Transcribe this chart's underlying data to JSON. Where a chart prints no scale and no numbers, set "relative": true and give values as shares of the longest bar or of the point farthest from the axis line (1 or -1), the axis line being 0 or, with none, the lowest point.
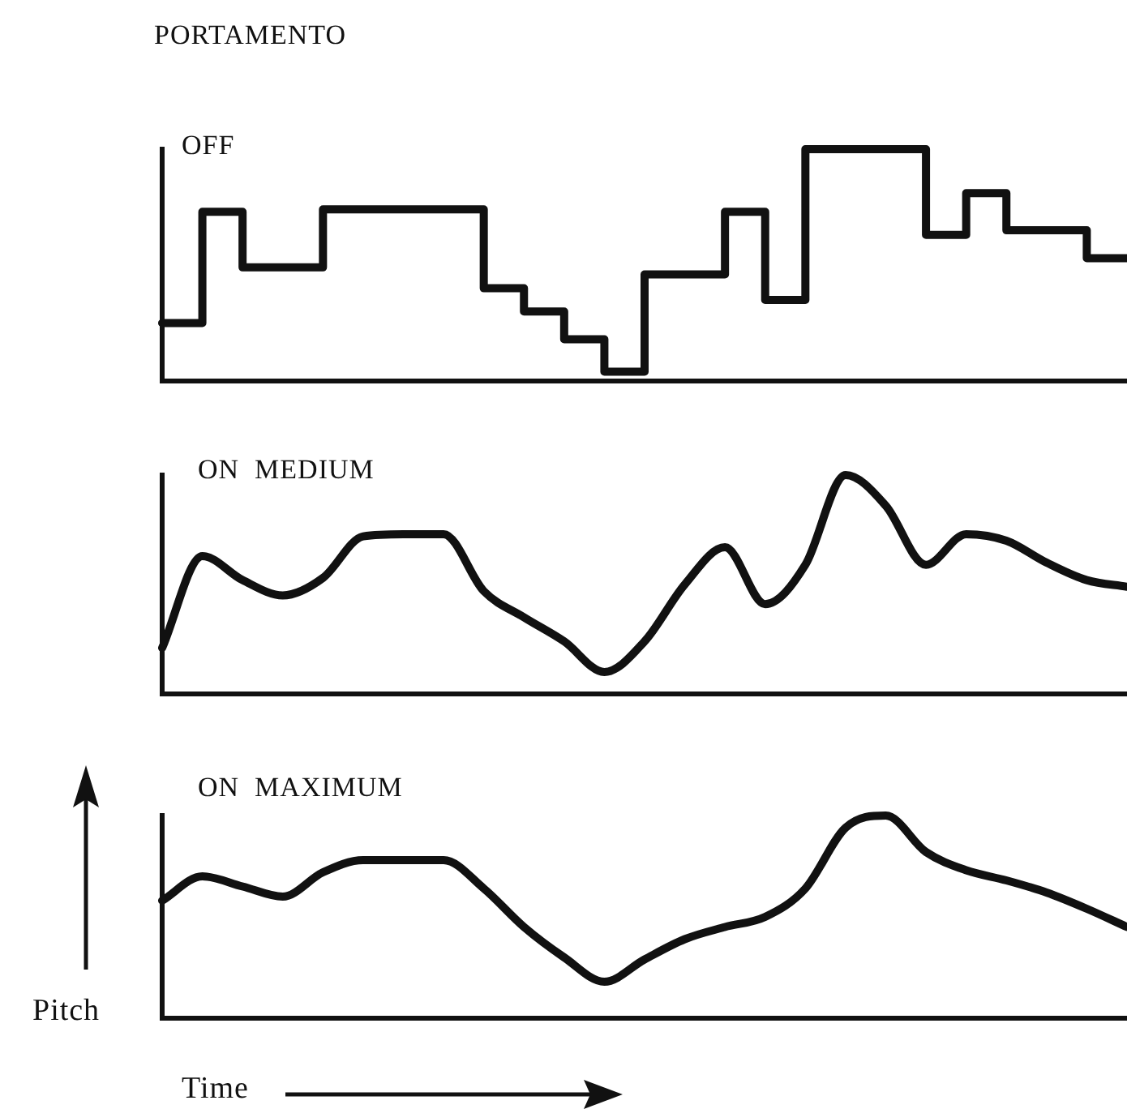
{
  "chart_data": [
    {
      "type": "step",
      "title": "PORTAMENTO",
      "subtitle": "OFF",
      "relative": true,
      "marker": "none",
      "color": "#111111",
      "categories": [
        null,
        null,
        null,
        null,
        null,
        null,
        null,
        null,
        null,
        null,
        null,
        null,
        null,
        null,
        null,
        null,
        null,
        null,
        null,
        null,
        null,
        null,
        null,
        null,
        null
      ],
      "values": [
        0.25,
        0.73,
        0.49,
        0.49,
        0.74,
        0.74,
        0.74,
        0.74,
        0.4,
        0.3,
        0.18,
        0.04,
        0.46,
        0.46,
        0.73,
        0.35,
        1,
        1,
        1,
        0.63,
        0.81,
        0.65,
        0.65,
        0.53,
        0.53
      ]
    },
    {
      "type": "line",
      "title": "ON  MEDIUM",
      "relative": true,
      "marker": "none",
      "color": "#111111",
      "categories": [
        null,
        null,
        null,
        null,
        null,
        null,
        null,
        null,
        null,
        null,
        null,
        null,
        null,
        null,
        null,
        null,
        null,
        null,
        null,
        null,
        null,
        null,
        null,
        null,
        null
      ],
      "values": [
        0.21,
        0.63,
        0.52,
        0.45,
        0.53,
        0.72,
        0.73,
        0.73,
        0.47,
        0.35,
        0.24,
        0.1,
        0.24,
        0.5,
        0.67,
        0.41,
        0.59,
        1,
        0.86,
        0.59,
        0.73,
        0.7,
        0.6,
        0.52,
        0.49
      ]
    },
    {
      "type": "line",
      "title": "ON  MAXIMUM",
      "xlabel": "Time",
      "ylabel": "Pitch",
      "relative": true,
      "marker": "none",
      "color": "#111111",
      "categories": [
        null,
        null,
        null,
        null,
        null,
        null,
        null,
        null,
        null,
        null,
        null,
        null,
        null,
        null,
        null,
        null,
        null,
        null,
        null,
        null,
        null,
        null,
        null,
        null,
        null
      ],
      "values": [
        0.58,
        0.7,
        0.65,
        0.6,
        0.72,
        0.78,
        0.78,
        0.78,
        0.64,
        0.45,
        0.3,
        0.18,
        0.29,
        0.39,
        0.45,
        0.5,
        0.64,
        0.94,
        1,
        0.82,
        0.73,
        0.68,
        0.62,
        0.54,
        0.45
      ]
    }
  ]
}
